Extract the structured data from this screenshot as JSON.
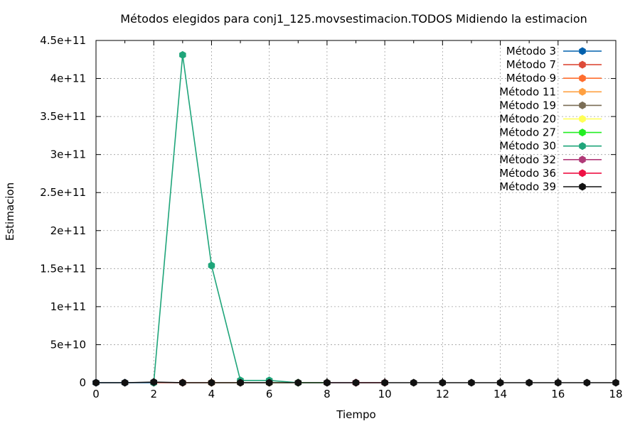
{
  "chart_data": {
    "type": "line",
    "title": "Métodos elegidos para conj1_125.movsestimacion.TODOS Midiendo la estimacion",
    "xlabel": "Tiempo",
    "ylabel": "Estimacion",
    "xlim": [
      0,
      18
    ],
    "ylim": [
      0,
      450000000000
    ],
    "xticks": [
      0,
      2,
      4,
      6,
      8,
      10,
      12,
      14,
      16,
      18
    ],
    "xtick_labels": [
      "0",
      "2",
      "4",
      "6",
      "8",
      "10",
      "12",
      "14",
      "16",
      "18"
    ],
    "yticks": [
      0,
      50000000000,
      100000000000,
      150000000000,
      200000000000,
      250000000000,
      300000000000,
      350000000000,
      400000000000,
      450000000000
    ],
    "ytick_labels": [
      "0",
      "5e+10",
      "1e+11",
      "1.5e+11",
      "2e+11",
      "2.5e+11",
      "3e+11",
      "3.5e+11",
      "4e+11",
      "4.5e+11"
    ],
    "grid": true,
    "legend_position": "top-right",
    "series": [
      {
        "name": "Método 3",
        "color": "#0060ad",
        "points": [
          [
            0,
            0
          ],
          [
            1,
            0
          ],
          [
            2,
            0
          ]
        ]
      },
      {
        "name": "Método 7",
        "color": "#dd4b39",
        "points": [
          [
            2,
            0
          ],
          [
            3,
            0
          ]
        ]
      },
      {
        "name": "Método 9",
        "color": "#ff6d2e",
        "points": [
          [
            3,
            0
          ],
          [
            4,
            0
          ]
        ]
      },
      {
        "name": "Método 11",
        "color": "#ffa040",
        "points": [
          [
            4,
            0
          ],
          [
            5,
            0
          ]
        ]
      },
      {
        "name": "Método 19",
        "color": "#7a6d55",
        "points": [
          [
            5,
            0
          ],
          [
            6,
            0
          ]
        ]
      },
      {
        "name": "Método 20",
        "color": "#ffff55",
        "points": [
          [
            6,
            0
          ],
          [
            7,
            0
          ]
        ]
      },
      {
        "name": "Método 27",
        "color": "#22ee22",
        "points": [
          [
            7,
            0
          ],
          [
            8,
            0
          ]
        ]
      },
      {
        "name": "Método 30",
        "color": "#1fa57a",
        "points": [
          [
            2,
            0
          ],
          [
            3,
            431000000000
          ],
          [
            4,
            154000000000
          ],
          [
            5,
            3000000000
          ],
          [
            6,
            3000000000
          ],
          [
            7,
            0
          ]
        ]
      },
      {
        "name": "Método 32",
        "color": "#b03a78",
        "points": [
          [
            8,
            0
          ],
          [
            9,
            0
          ]
        ]
      },
      {
        "name": "Método 36",
        "color": "#ee1144",
        "points": [
          [
            9,
            0
          ],
          [
            10,
            0
          ]
        ]
      },
      {
        "name": "Método 39",
        "color": "#111111",
        "points": [
          [
            0,
            0
          ],
          [
            1,
            0
          ],
          [
            2,
            800000000
          ],
          [
            3,
            0
          ],
          [
            4,
            0
          ],
          [
            5,
            0
          ],
          [
            6,
            0
          ],
          [
            7,
            0
          ],
          [
            8,
            0
          ],
          [
            9,
            0
          ],
          [
            10,
            0
          ],
          [
            11,
            0
          ],
          [
            12,
            0
          ],
          [
            13,
            0
          ],
          [
            14,
            0
          ],
          [
            15,
            0
          ],
          [
            16,
            0
          ],
          [
            17,
            0
          ],
          [
            18,
            0
          ]
        ]
      }
    ]
  }
}
